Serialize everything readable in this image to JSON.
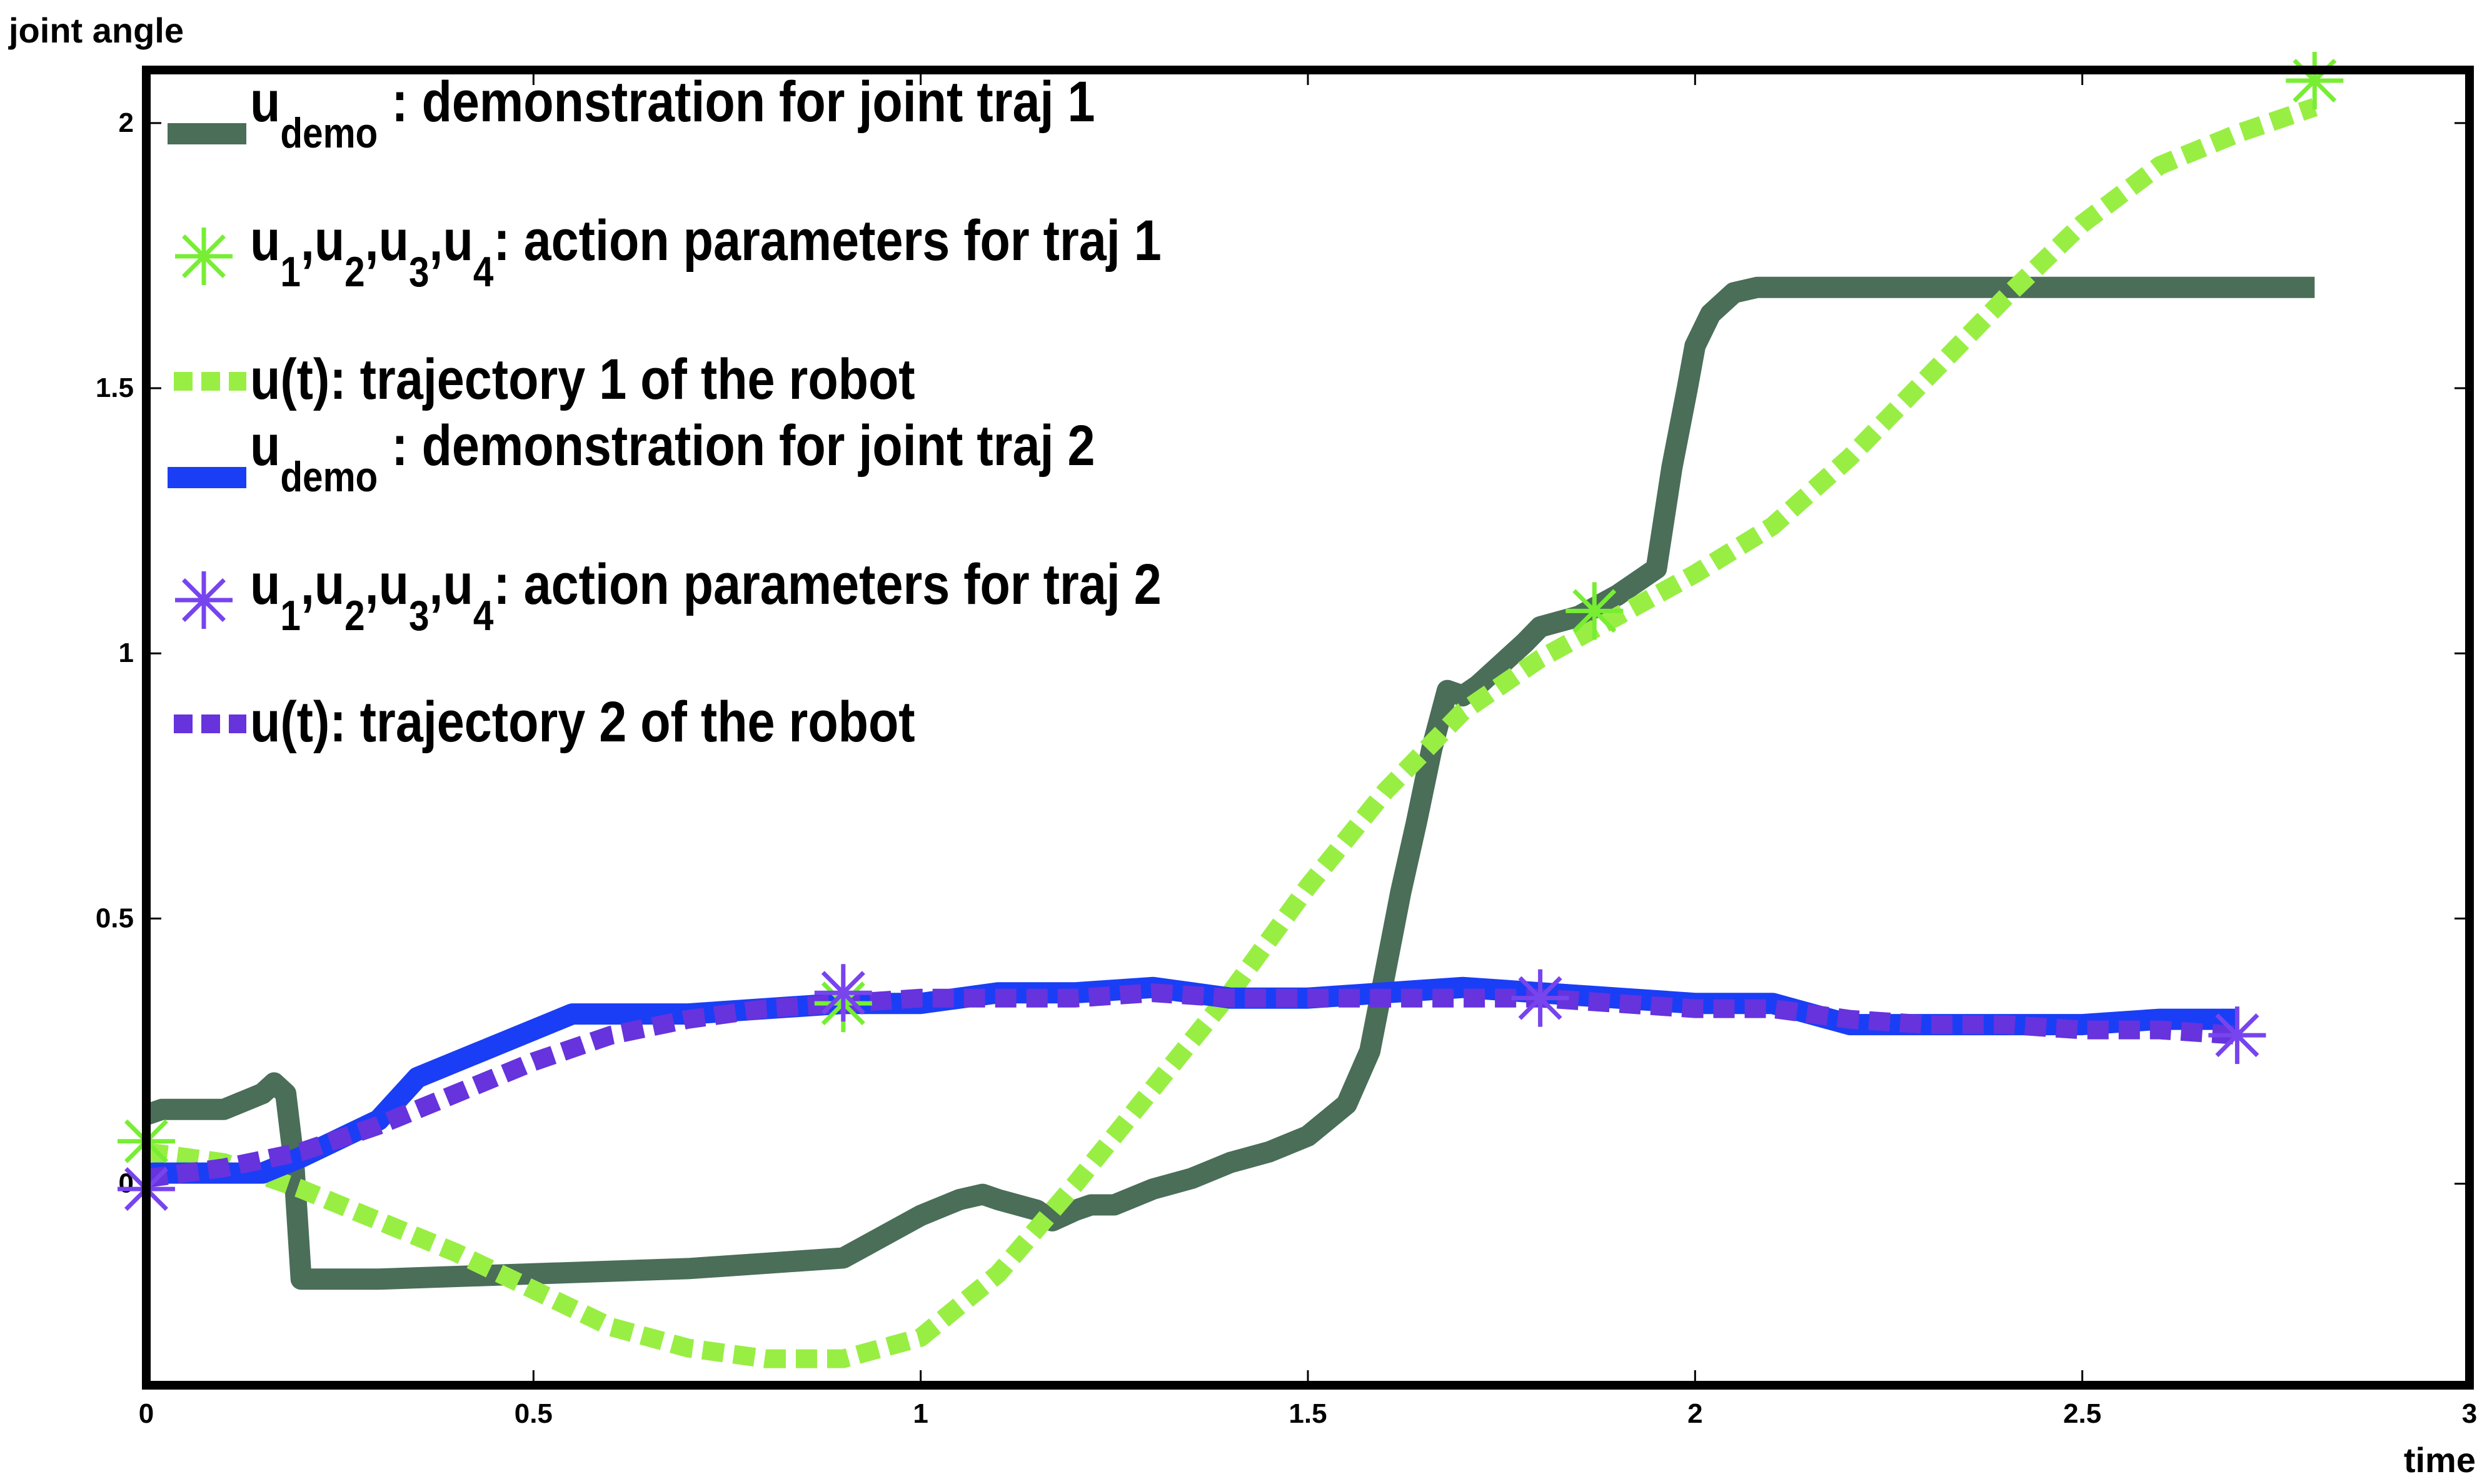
{
  "chart_data": {
    "type": "line",
    "xlabel": "time",
    "ylabel": "joint angle",
    "xlim": [
      0,
      3
    ],
    "ylim": [
      -0.38,
      2.1
    ],
    "xticks": [
      0,
      0.5,
      1,
      1.5,
      2,
      2.5,
      3
    ],
    "xtick_labels": [
      "0",
      "0.5",
      "1",
      "1.5",
      "2",
      "2.5",
      "3"
    ],
    "yticks": [
      0,
      0.5,
      1,
      1.5,
      2
    ],
    "ytick_labels": [
      "0",
      "0.5",
      "1",
      "1.5",
      "2"
    ],
    "grid": false,
    "legend_position": "top-left",
    "legend": [
      {
        "main": "u",
        "sub": "demo",
        "rest": " : demonstration for joint traj 1",
        "marker": "line",
        "color": "#4a6e58"
      },
      {
        "main": "u",
        "sub": "1",
        "main2": ",u",
        "sub2": "2",
        "main3": ",u",
        "sub3": "3",
        "main4": ",u",
        "sub4": "4",
        "rest": ": action parameters for traj 1",
        "marker": "star",
        "color": "#77ee33"
      },
      {
        "main": "u(t): trajectory 1 of the robot",
        "marker": "dash",
        "color": "#99ee44"
      },
      {
        "main": "u",
        "sub": "demo",
        "rest": " : demonstration for joint traj 2",
        "marker": "line",
        "color": "#1a3ef5"
      },
      {
        "main": "u",
        "sub": "1",
        "main2": ",u",
        "sub2": "2",
        "main3": ",u",
        "sub3": "3",
        "main4": ",u",
        "sub4": "4",
        "rest": ": action parameters for traj 2",
        "marker": "star",
        "color": "#7744ee"
      },
      {
        "main": "u(t): trajectory 2 of the robot",
        "marker": "dash",
        "color": "#6633dd"
      }
    ],
    "series": [
      {
        "name": "u demo : demonstration for joint traj 1",
        "style": "solid",
        "color": "#4a6e58",
        "x": [
          0,
          0.02,
          0.1,
          0.15,
          0.165,
          0.18,
          0.19,
          0.2,
          0.3,
          0.5,
          0.7,
          0.8,
          0.9,
          0.95,
          1.0,
          1.05,
          1.08,
          1.1,
          1.15,
          1.17,
          1.2,
          1.22,
          1.25,
          1.3,
          1.35,
          1.4,
          1.45,
          1.5,
          1.55,
          1.58,
          1.6,
          1.62,
          1.64,
          1.66,
          1.68,
          1.7,
          1.72,
          1.75,
          1.78,
          1.8,
          1.85,
          1.9,
          1.95,
          1.97,
          1.99,
          2.0,
          2.02,
          2.05,
          2.08,
          2.2,
          2.5,
          2.8
        ],
        "y": [
          0.13,
          0.14,
          0.14,
          0.17,
          0.19,
          0.17,
          0.05,
          -0.18,
          -0.18,
          -0.17,
          -0.16,
          -0.15,
          -0.14,
          -0.1,
          -0.06,
          -0.03,
          -0.02,
          -0.03,
          -0.05,
          -0.07,
          -0.05,
          -0.04,
          -0.04,
          -0.01,
          0.01,
          0.04,
          0.06,
          0.09,
          0.15,
          0.25,
          0.4,
          0.55,
          0.68,
          0.82,
          0.93,
          0.92,
          0.94,
          0.98,
          1.02,
          1.05,
          1.07,
          1.11,
          1.16,
          1.35,
          1.5,
          1.58,
          1.64,
          1.68,
          1.69,
          1.69,
          1.69,
          1.69
        ]
      },
      {
        "name": "u(t): trajectory 1 of the robot",
        "style": "dashed",
        "color": "#99ee44",
        "x": [
          0,
          0.1,
          0.2,
          0.3,
          0.4,
          0.5,
          0.6,
          0.7,
          0.8,
          0.9,
          1.0,
          1.1,
          1.2,
          1.3,
          1.4,
          1.5,
          1.6,
          1.7,
          1.8,
          1.9,
          2.0,
          2.1,
          2.2,
          2.3,
          2.4,
          2.5,
          2.6,
          2.7,
          2.8
        ],
        "y": [
          0.06,
          0.04,
          -0.01,
          -0.07,
          -0.13,
          -0.2,
          -0.27,
          -0.31,
          -0.33,
          -0.33,
          -0.29,
          -0.17,
          0.0,
          0.18,
          0.36,
          0.56,
          0.74,
          0.89,
          0.99,
          1.07,
          1.15,
          1.24,
          1.37,
          1.52,
          1.67,
          1.81,
          1.92,
          1.98,
          2.03
        ]
      },
      {
        "name": "u demo : demonstration for joint traj 2",
        "style": "solid",
        "color": "#1a3ef5",
        "x": [
          0,
          0.15,
          0.2,
          0.3,
          0.35,
          0.45,
          0.55,
          0.7,
          0.8,
          0.9,
          1.0,
          1.1,
          1.2,
          1.3,
          1.4,
          1.5,
          1.6,
          1.7,
          1.8,
          1.9,
          2.0,
          2.1,
          2.2,
          2.3,
          2.4,
          2.5,
          2.6,
          2.7
        ],
        "y": [
          0.02,
          0.02,
          0.05,
          0.12,
          0.2,
          0.26,
          0.32,
          0.32,
          0.33,
          0.34,
          0.34,
          0.36,
          0.36,
          0.37,
          0.35,
          0.35,
          0.36,
          0.37,
          0.36,
          0.35,
          0.34,
          0.34,
          0.3,
          0.3,
          0.3,
          0.3,
          0.31,
          0.31
        ]
      },
      {
        "name": "u(t): trajectory 2 of the robot",
        "style": "dashed",
        "color": "#6633dd",
        "x": [
          0,
          0.1,
          0.2,
          0.3,
          0.4,
          0.5,
          0.6,
          0.7,
          0.8,
          0.9,
          1.0,
          1.1,
          1.2,
          1.3,
          1.4,
          1.5,
          1.6,
          1.7,
          1.8,
          1.9,
          2.0,
          2.1,
          2.2,
          2.3,
          2.4,
          2.5,
          2.6,
          2.7
        ],
        "y": [
          0.01,
          0.03,
          0.06,
          0.11,
          0.17,
          0.23,
          0.28,
          0.31,
          0.33,
          0.34,
          0.35,
          0.35,
          0.35,
          0.36,
          0.35,
          0.35,
          0.35,
          0.35,
          0.35,
          0.34,
          0.33,
          0.33,
          0.31,
          0.3,
          0.3,
          0.29,
          0.29,
          0.28
        ]
      }
    ],
    "markers": [
      {
        "name": "u1,u2,u3,u4: action parameters for traj 1",
        "color": "#77ee33",
        "x": [
          0,
          0.9,
          1.87,
          2.8
        ],
        "y": [
          0.08,
          0.34,
          1.08,
          2.08
        ]
      },
      {
        "name": "u1,u2,u3,u4: action parameters for traj 2",
        "color": "#7744ee",
        "x": [
          0,
          0.9,
          1.8,
          2.7
        ],
        "y": [
          -0.01,
          0.36,
          0.35,
          0.28
        ]
      }
    ]
  }
}
